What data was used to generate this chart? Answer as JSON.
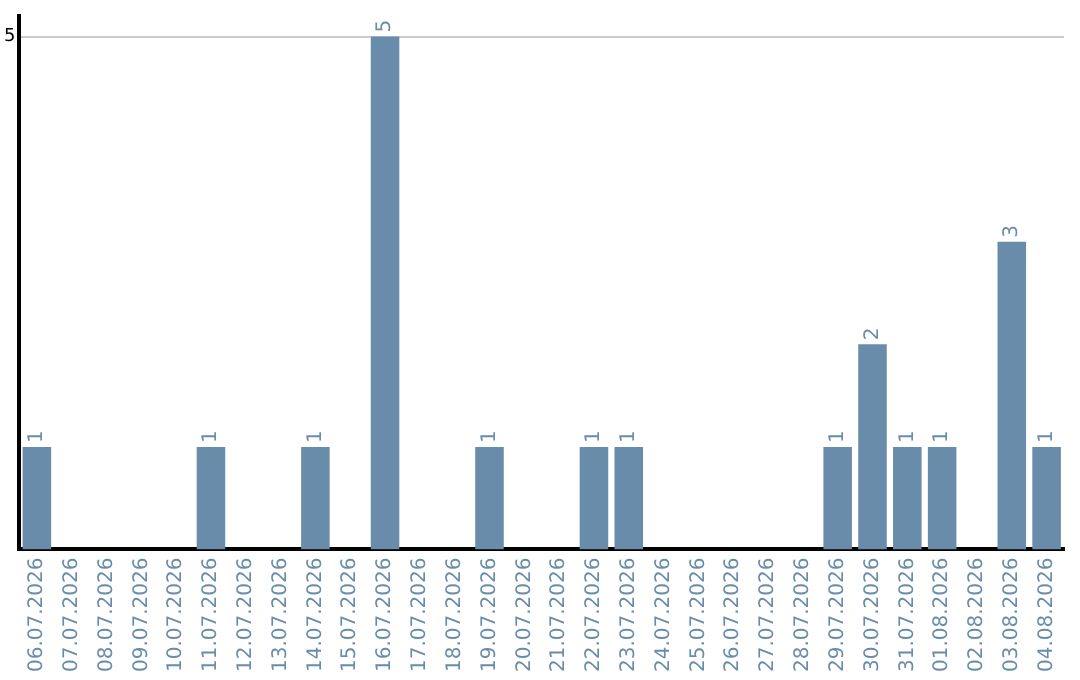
{
  "chart_data": {
    "type": "bar",
    "categories": [
      "06.07.2026",
      "07.07.2026",
      "08.07.2026",
      "09.07.2026",
      "10.07.2026",
      "11.07.2026",
      "12.07.2026",
      "13.07.2026",
      "14.07.2026",
      "15.07.2026",
      "16.07.2026",
      "17.07.2026",
      "18.07.2026",
      "19.07.2026",
      "20.07.2026",
      "21.07.2026",
      "22.07.2026",
      "23.07.2026",
      "24.07.2026",
      "25.07.2026",
      "26.07.2026",
      "27.07.2026",
      "28.07.2026",
      "29.07.2026",
      "30.07.2026",
      "31.07.2026",
      "01.08.2026",
      "02.08.2026",
      "03.08.2026",
      "04.08.2026"
    ],
    "values": [
      1,
      0,
      0,
      0,
      0,
      1,
      0,
      0,
      1,
      0,
      5,
      0,
      0,
      1,
      0,
      0,
      1,
      1,
      0,
      0,
      0,
      0,
      0,
      1,
      2,
      1,
      1,
      0,
      3,
      1
    ],
    "value_labels": [
      "1",
      null,
      null,
      null,
      null,
      "1",
      null,
      null,
      "1",
      null,
      "5",
      null,
      null,
      "1",
      null,
      null,
      "1",
      "1",
      null,
      null,
      null,
      null,
      null,
      "1",
      "2",
      "1",
      "1",
      null,
      "3",
      "1"
    ],
    "color": "#6a8cab",
    "ylim": [
      0,
      5.2
    ],
    "yticks": [
      5
    ],
    "grid": "y",
    "legend": false
  }
}
